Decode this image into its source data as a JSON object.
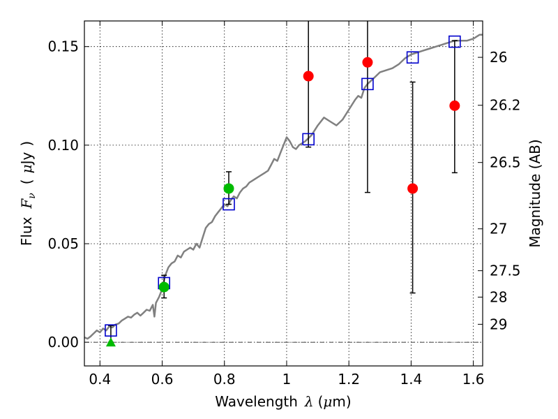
{
  "chart_data": {
    "type": "scatter",
    "xlabel": "Wavelength  λ (μm)",
    "ylabel": "Flux  F_ν  ( μJy )",
    "ylabel_parts": {
      "flux": "Flux",
      "f": "F",
      "nu": "ν",
      "paren_open": "(",
      "mu": "μ",
      "unit": "Jy",
      "paren_close": ")"
    },
    "xlabel_parts": {
      "word": "Wavelength",
      "lambda": "λ",
      "unit_open": "(",
      "mu": "μ",
      "unit": "m)"
    },
    "y2label": "Magnitude (AB)",
    "xlim": [
      0.35,
      1.63
    ],
    "ylim": [
      -0.012,
      0.163
    ],
    "grid": true,
    "xticks": [
      {
        "value": 0.4,
        "label": "0.4"
      },
      {
        "value": 0.6,
        "label": "0.6"
      },
      {
        "value": 0.8,
        "label": "0.8"
      },
      {
        "value": 1.0,
        "label": "1"
      },
      {
        "value": 1.2,
        "label": "1.2"
      },
      {
        "value": 1.4,
        "label": "1.4"
      },
      {
        "value": 1.6,
        "label": "1.6"
      }
    ],
    "yticks": [
      {
        "value": 0.0,
        "label": "0.00"
      },
      {
        "value": 0.05,
        "label": "0.05"
      },
      {
        "value": 0.1,
        "label": "0.10"
      },
      {
        "value": 0.15,
        "label": "0.15"
      }
    ],
    "magnitude_ticks": [
      {
        "mag": 26,
        "label": "26"
      },
      {
        "mag": 26.2,
        "label": "26.2"
      },
      {
        "mag": 26.5,
        "label": "26.5"
      },
      {
        "mag": 27,
        "label": "27"
      },
      {
        "mag": 27.5,
        "label": "27.5"
      },
      {
        "mag": 28,
        "label": "28"
      },
      {
        "mag": 29,
        "label": "29"
      }
    ],
    "zero_line": 0.0,
    "colors": {
      "model": "#808080",
      "green": "#00bb00",
      "red": "#ff0000",
      "square": "#0000cc",
      "errorbar": "#000000",
      "grid": "#000000"
    },
    "model_spectrum": [
      [
        0.35,
        0.0025
      ],
      [
        0.36,
        0.0018
      ],
      [
        0.37,
        0.003
      ],
      [
        0.38,
        0.0045
      ],
      [
        0.39,
        0.006
      ],
      [
        0.4,
        0.005
      ],
      [
        0.41,
        0.007
      ],
      [
        0.42,
        0.006
      ],
      [
        0.43,
        0.008
      ],
      [
        0.44,
        0.0075
      ],
      [
        0.45,
        0.009
      ],
      [
        0.46,
        0.0095
      ],
      [
        0.47,
        0.011
      ],
      [
        0.48,
        0.012
      ],
      [
        0.49,
        0.013
      ],
      [
        0.5,
        0.0125
      ],
      [
        0.51,
        0.014
      ],
      [
        0.52,
        0.015
      ],
      [
        0.53,
        0.0135
      ],
      [
        0.54,
        0.015
      ],
      [
        0.55,
        0.0165
      ],
      [
        0.56,
        0.016
      ],
      [
        0.57,
        0.019
      ],
      [
        0.575,
        0.013
      ],
      [
        0.58,
        0.02
      ],
      [
        0.59,
        0.023
      ],
      [
        0.6,
        0.027
      ],
      [
        0.61,
        0.034
      ],
      [
        0.62,
        0.038
      ],
      [
        0.63,
        0.04
      ],
      [
        0.64,
        0.041
      ],
      [
        0.65,
        0.044
      ],
      [
        0.66,
        0.043
      ],
      [
        0.67,
        0.046
      ],
      [
        0.68,
        0.047
      ],
      [
        0.69,
        0.048
      ],
      [
        0.7,
        0.047
      ],
      [
        0.71,
        0.05
      ],
      [
        0.72,
        0.048
      ],
      [
        0.73,
        0.053
      ],
      [
        0.74,
        0.058
      ],
      [
        0.75,
        0.06
      ],
      [
        0.76,
        0.061
      ],
      [
        0.77,
        0.064
      ],
      [
        0.78,
        0.066
      ],
      [
        0.79,
        0.068
      ],
      [
        0.8,
        0.07
      ],
      [
        0.81,
        0.069
      ],
      [
        0.82,
        0.072
      ],
      [
        0.83,
        0.074
      ],
      [
        0.84,
        0.073
      ],
      [
        0.85,
        0.076
      ],
      [
        0.86,
        0.078
      ],
      [
        0.87,
        0.079
      ],
      [
        0.88,
        0.081
      ],
      [
        0.89,
        0.082
      ],
      [
        0.9,
        0.083
      ],
      [
        0.91,
        0.084
      ],
      [
        0.92,
        0.085
      ],
      [
        0.93,
        0.086
      ],
      [
        0.94,
        0.087
      ],
      [
        0.95,
        0.09
      ],
      [
        0.96,
        0.093
      ],
      [
        0.97,
        0.092
      ],
      [
        0.98,
        0.096
      ],
      [
        0.99,
        0.1
      ],
      [
        1.0,
        0.104
      ],
      [
        1.01,
        0.102
      ],
      [
        1.02,
        0.099
      ],
      [
        1.03,
        0.098
      ],
      [
        1.04,
        0.1
      ],
      [
        1.05,
        0.101
      ],
      [
        1.06,
        0.102
      ],
      [
        1.08,
        0.105
      ],
      [
        1.1,
        0.11
      ],
      [
        1.12,
        0.114
      ],
      [
        1.14,
        0.112
      ],
      [
        1.16,
        0.11
      ],
      [
        1.18,
        0.113
      ],
      [
        1.2,
        0.118
      ],
      [
        1.22,
        0.123
      ],
      [
        1.23,
        0.125
      ],
      [
        1.24,
        0.124
      ],
      [
        1.25,
        0.129
      ],
      [
        1.26,
        0.131
      ],
      [
        1.28,
        0.134
      ],
      [
        1.3,
        0.137
      ],
      [
        1.32,
        0.138
      ],
      [
        1.34,
        0.139
      ],
      [
        1.36,
        0.141
      ],
      [
        1.38,
        0.144
      ],
      [
        1.4,
        0.146
      ],
      [
        1.42,
        0.147
      ],
      [
        1.44,
        0.148
      ],
      [
        1.46,
        0.149
      ],
      [
        1.48,
        0.15
      ],
      [
        1.5,
        0.151
      ],
      [
        1.52,
        0.152
      ],
      [
        1.54,
        0.153
      ],
      [
        1.56,
        0.153
      ],
      [
        1.58,
        0.153
      ],
      [
        1.6,
        0.154
      ],
      [
        1.62,
        0.156
      ],
      [
        1.63,
        0.156
      ]
    ],
    "model_points": [
      {
        "x": 0.435,
        "y": 0.006
      },
      {
        "x": 0.606,
        "y": 0.03
      },
      {
        "x": 0.814,
        "y": 0.07
      },
      {
        "x": 1.07,
        "y": 0.103
      },
      {
        "x": 1.26,
        "y": 0.131
      },
      {
        "x": 1.405,
        "y": 0.1445
      },
      {
        "x": 1.54,
        "y": 0.1525
      }
    ],
    "upper_limit": [
      {
        "x": 0.435,
        "y": 0.0,
        "err_high": 0.0085
      }
    ],
    "green_points": [
      {
        "x": 0.606,
        "y": 0.028,
        "err_low": 0.0055,
        "err_high": 0.006
      },
      {
        "x": 0.814,
        "y": 0.078,
        "err_low": 0.008,
        "err_high": 0.0085
      }
    ],
    "red_points": [
      {
        "x": 1.07,
        "y": 0.135,
        "err_low": 0.036,
        "err_high": 0.04
      },
      {
        "x": 1.26,
        "y": 0.142,
        "err_low": 0.066,
        "err_high": 0.04
      },
      {
        "x": 1.405,
        "y": 0.078,
        "err_low": 0.053,
        "err_high": 0.054
      },
      {
        "x": 1.54,
        "y": 0.12,
        "err_low": 0.034,
        "err_high": 0.033
      }
    ]
  }
}
